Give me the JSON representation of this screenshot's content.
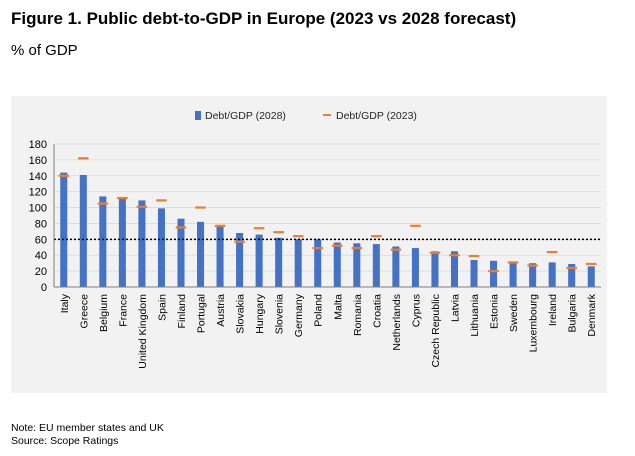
{
  "figure": {
    "title": "Figure 1. Public debt-to-GDP in Europe (2023 vs 2028 forecast)",
    "subtitle": "% of GDP"
  },
  "notes": {
    "note": "Note: EU member states and UK",
    "source": "Source: Scope Ratings"
  },
  "chart_data": {
    "type": "bar",
    "title": "",
    "xlabel": "",
    "ylabel": "",
    "ylim": [
      0,
      180
    ],
    "yticks": [
      0,
      20,
      40,
      60,
      80,
      100,
      120,
      140,
      160,
      180
    ],
    "grid": true,
    "legend_position": "top-center",
    "reference_line": {
      "value": 60,
      "style": "dotted",
      "color": "#000000"
    },
    "categories": [
      "Italy",
      "Greece",
      "Belgium",
      "France",
      "United Kingdom",
      "Spain",
      "Finland",
      "Portugal",
      "Austria",
      "Slovakia",
      "Hungary",
      "Slovenia",
      "Germany",
      "Poland",
      "Malta",
      "Romania",
      "Croatia",
      "Netherlands",
      "Cyprus",
      "Czech Republic",
      "Latvia",
      "Lithuania",
      "Estonia",
      "Sweden",
      "Luxembourg",
      "Ireland",
      "Bulgaria",
      "Denmark"
    ],
    "series": [
      {
        "name": "Debt/GDP (2028)",
        "kind": "bar",
        "color": "#4472c4",
        "values": [
          144,
          141,
          114,
          111,
          109,
          99,
          86,
          82,
          78,
          68,
          66,
          62,
          60,
          60,
          56,
          55,
          54,
          51,
          49,
          45,
          45,
          34,
          33,
          32,
          30,
          31,
          29,
          26
        ]
      },
      {
        "name": "Debt/GDP (2023)",
        "kind": "marker",
        "color": "#ed7d31",
        "values": [
          140,
          162,
          105,
          112,
          101,
          109,
          75,
          100,
          77,
          57,
          74,
          69,
          64,
          49,
          52,
          49,
          64,
          47,
          77,
          43,
          40,
          39,
          20,
          31,
          27,
          44,
          24,
          29
        ]
      }
    ]
  }
}
